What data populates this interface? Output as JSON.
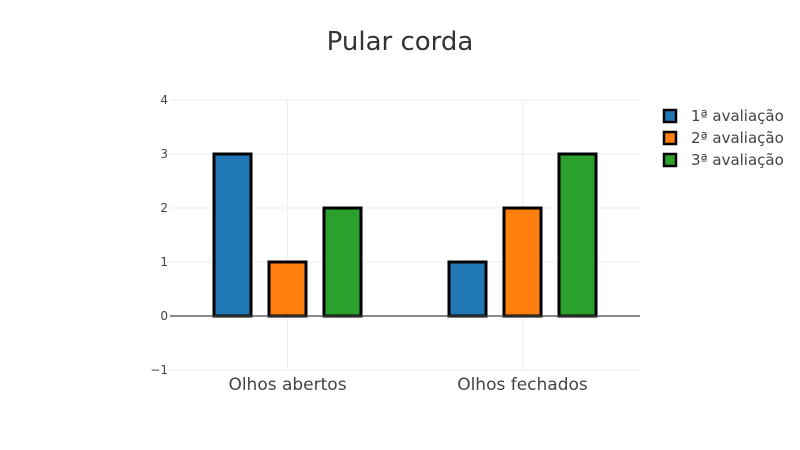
{
  "chart_data": {
    "type": "bar",
    "title": "Pular corda",
    "categories": [
      "Olhos abertos",
      "Olhos fechados"
    ],
    "series": [
      {
        "name": "1ª avaliação",
        "values": [
          3,
          1
        ],
        "color": "#1f77b4"
      },
      {
        "name": "2ª avaliação",
        "values": [
          1,
          2
        ],
        "color": "#ff7f0e"
      },
      {
        "name": "3ª avaliação",
        "values": [
          2,
          3
        ],
        "color": "#2ca02c"
      }
    ],
    "ylim": [
      -1,
      4
    ],
    "yticks": [
      -1,
      0,
      1,
      2,
      3,
      4
    ],
    "ytick_labels": [
      "−1",
      "0",
      "1",
      "2",
      "3",
      "4"
    ],
    "grid": true,
    "legend_position": "top-right"
  }
}
